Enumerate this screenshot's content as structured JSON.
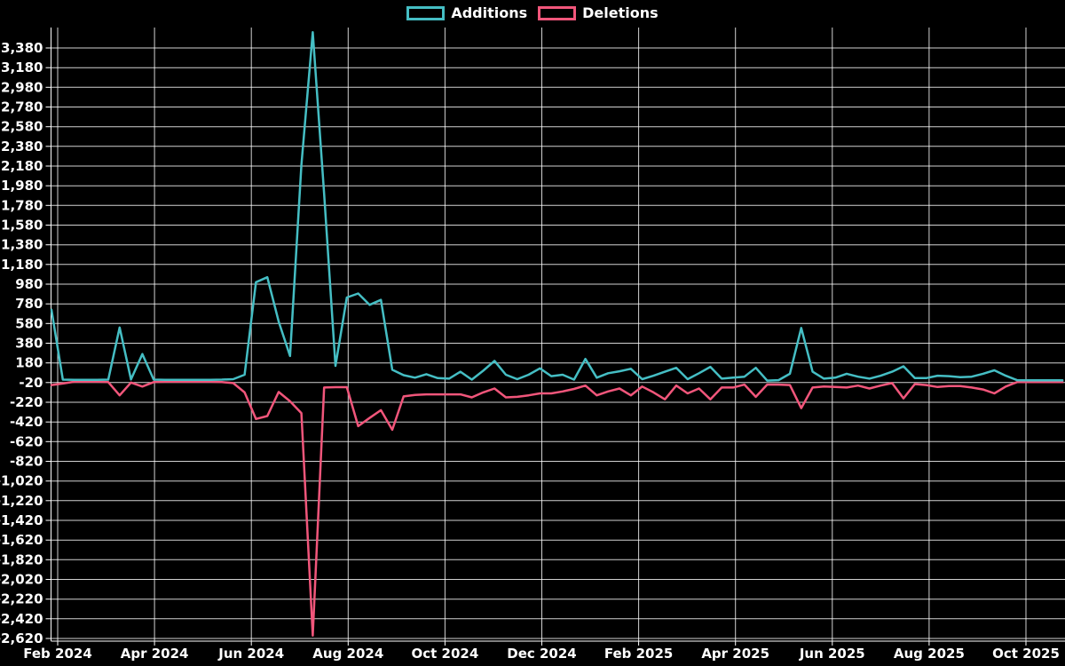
{
  "page": {
    "background": "#000000",
    "text_color": "#ffffff",
    "grid_color": "#ffffff"
  },
  "chart_data": {
    "type": "line",
    "legend_position": "top-center",
    "grid": true,
    "ylim": [
      -2620,
      3380
    ],
    "y_tick_step": 200,
    "x_tick_labels": [
      "Feb 2024",
      "Apr 2024",
      "Jun 2024",
      "Aug 2024",
      "Oct 2024",
      "Dec 2024",
      "Feb 2025",
      "Apr 2025",
      "Jun 2025",
      "Aug 2025",
      "Oct 2025"
    ],
    "x": [
      "2024-01-28",
      "2024-02-04",
      "2024-02-11",
      "2024-02-18",
      "2024-02-25",
      "2024-03-03",
      "2024-03-10",
      "2024-03-17",
      "2024-03-24",
      "2024-03-31",
      "2024-04-07",
      "2024-04-14",
      "2024-04-21",
      "2024-04-28",
      "2024-05-05",
      "2024-05-12",
      "2024-05-19",
      "2024-05-26",
      "2024-06-02",
      "2024-06-09",
      "2024-06-16",
      "2024-06-23",
      "2024-06-30",
      "2024-07-07",
      "2024-07-14",
      "2024-07-21",
      "2024-07-28",
      "2024-08-04",
      "2024-08-11",
      "2024-08-18",
      "2024-08-25",
      "2024-09-01",
      "2024-09-08",
      "2024-09-15",
      "2024-09-22",
      "2024-09-29",
      "2024-10-06",
      "2024-10-13",
      "2024-10-20",
      "2024-10-27",
      "2024-11-03",
      "2024-11-10",
      "2024-11-17",
      "2024-11-24",
      "2024-12-01",
      "2024-12-08",
      "2024-12-15",
      "2024-12-22",
      "2024-12-29",
      "2025-01-05",
      "2025-01-12",
      "2025-01-19",
      "2025-01-26",
      "2025-02-02",
      "2025-02-09",
      "2025-02-16",
      "2025-02-23",
      "2025-03-02",
      "2025-03-09",
      "2025-03-16",
      "2025-03-23",
      "2025-03-30",
      "2025-04-06",
      "2025-04-13",
      "2025-04-20",
      "2025-04-27",
      "2025-05-04",
      "2025-05-11",
      "2025-05-18",
      "2025-05-25",
      "2025-06-01",
      "2025-06-08",
      "2025-06-15",
      "2025-06-22",
      "2025-06-29",
      "2025-07-06",
      "2025-07-13",
      "2025-07-20",
      "2025-07-27",
      "2025-08-03",
      "2025-08-10",
      "2025-08-17",
      "2025-08-24",
      "2025-08-31",
      "2025-09-07",
      "2025-09-14",
      "2025-09-21",
      "2025-09-28",
      "2025-10-05",
      "2025-10-12"
    ],
    "series": [
      {
        "name": "Additions",
        "color": "#45bec4",
        "values": [
          720,
          10,
          8,
          8,
          8,
          10,
          540,
          12,
          270,
          10,
          8,
          8,
          8,
          8,
          8,
          10,
          15,
          60,
          1000,
          1050,
          600,
          250,
          2190,
          3540,
          1900,
          150,
          845,
          885,
          770,
          820,
          110,
          55,
          30,
          65,
          25,
          20,
          90,
          10,
          100,
          200,
          60,
          15,
          60,
          125,
          45,
          60,
          10,
          220,
          30,
          75,
          95,
          120,
          15,
          50,
          90,
          130,
          15,
          75,
          140,
          20,
          30,
          40,
          130,
          0,
          5,
          70,
          535,
          90,
          20,
          30,
          70,
          40,
          20,
          50,
          90,
          145,
          25,
          25,
          50,
          45,
          35,
          40,
          70,
          105,
          50,
          5,
          3,
          3,
          3,
          3
        ]
      },
      {
        "name": "Deletions",
        "color": "#f1567b",
        "values": [
          -45,
          -30,
          -12,
          -12,
          -12,
          -15,
          -150,
          -20,
          -60,
          -15,
          -12,
          -12,
          -12,
          -12,
          -12,
          -15,
          -25,
          -120,
          -390,
          -360,
          -115,
          -210,
          -330,
          -2590,
          -70,
          -67,
          -67,
          -463,
          -380,
          -300,
          -500,
          -160,
          -145,
          -140,
          -140,
          -140,
          -140,
          -170,
          -120,
          -80,
          -170,
          -165,
          -150,
          -130,
          -130,
          -110,
          -85,
          -50,
          -150,
          -110,
          -80,
          -150,
          -60,
          -120,
          -190,
          -50,
          -130,
          -80,
          -190,
          -70,
          -70,
          -40,
          -165,
          -40,
          -40,
          -45,
          -280,
          -70,
          -60,
          -65,
          -70,
          -50,
          -80,
          -50,
          -25,
          -180,
          -35,
          -45,
          -65,
          -55,
          -55,
          -70,
          -90,
          -130,
          -60,
          -15,
          -15,
          -15,
          -15,
          -15
        ]
      }
    ]
  }
}
